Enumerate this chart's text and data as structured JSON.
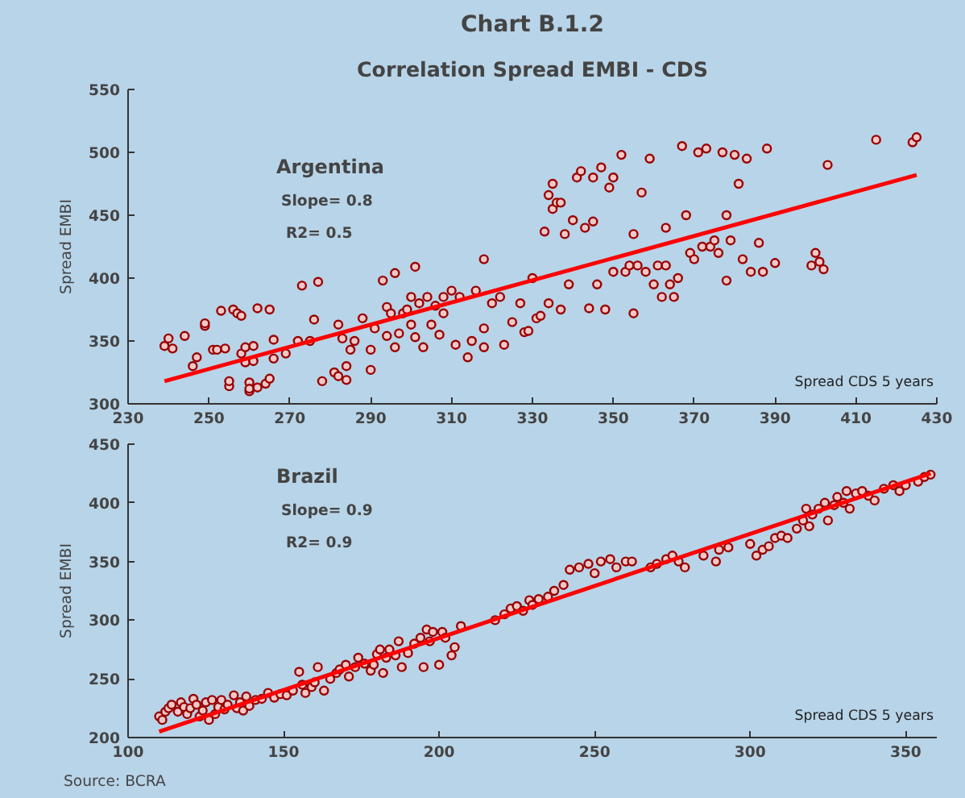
{
  "chart_data": [
    {
      "type": "scatter",
      "title": "Chart B.1.2",
      "subtitle": "Correlation Spread EMBI - CDS",
      "xlabel": "Spread CDS 5 years",
      "ylabel": "Spread EMBI",
      "annotations": [
        "Argentina",
        "Slope= 0.8",
        "R2= 0.5"
      ],
      "xlim": [
        230,
        430
      ],
      "xticks": [
        230,
        250,
        270,
        290,
        310,
        330,
        350,
        370,
        390,
        410,
        430
      ],
      "ylim": [
        300,
        550
      ],
      "yticks": [
        300,
        350,
        400,
        450,
        500,
        550
      ],
      "grid": false,
      "marker": "circle",
      "series": [
        {
          "color": "#990000",
          "x": [
            240,
            239,
            241,
            244,
            246,
            247,
            249,
            249,
            251,
            252,
            253,
            254,
            255,
            255,
            256,
            257,
            258,
            258,
            259,
            259,
            260,
            260,
            260,
            261,
            261,
            262,
            262,
            264,
            265,
            265,
            266,
            266,
            269,
            272,
            273,
            275,
            276,
            277,
            278,
            281,
            282,
            282,
            283,
            284,
            284,
            285,
            286,
            288,
            290,
            290,
            291,
            293,
            294,
            294,
            295,
            296,
            296,
            297,
            298,
            299,
            300,
            300,
            301,
            301,
            302,
            303,
            304,
            305,
            306,
            307,
            308,
            308,
            310,
            311,
            312,
            314,
            315,
            316,
            318,
            318,
            318,
            320,
            322,
            323,
            325,
            327,
            328,
            329,
            330,
            331,
            332,
            333,
            334,
            334,
            335,
            335,
            336,
            337,
            337,
            338,
            339,
            340,
            341,
            342,
            343,
            344,
            345,
            345,
            346,
            347,
            348,
            349,
            350,
            350,
            352,
            353,
            354,
            355,
            355,
            356,
            357,
            358,
            359,
            360,
            361,
            362,
            363,
            363,
            364,
            365,
            366,
            367,
            368,
            369,
            370,
            371,
            372,
            373,
            374,
            375,
            376,
            377,
            378,
            378,
            379,
            380,
            381,
            382,
            383,
            384,
            386,
            388,
            387,
            390,
            399,
            400,
            401,
            402,
            403,
            415,
            424,
            425
          ],
          "values": [
            352,
            346,
            344,
            354,
            330,
            337,
            362,
            364,
            343,
            343,
            374,
            344,
            314,
            318,
            375,
            372,
            370,
            340,
            345,
            333,
            310,
            317,
            312,
            334,
            346,
            376,
            313,
            316,
            320,
            375,
            336,
            351,
            340,
            350,
            394,
            350,
            367,
            397,
            318,
            325,
            322,
            363,
            352,
            330,
            319,
            343,
            350,
            368,
            327,
            343,
            360,
            398,
            377,
            354,
            372,
            404,
            345,
            356,
            372,
            375,
            363,
            385,
            409,
            353,
            380,
            345,
            385,
            363,
            378,
            355,
            385,
            372,
            390,
            347,
            385,
            337,
            350,
            390,
            415,
            345,
            360,
            380,
            385,
            347,
            365,
            380,
            357,
            358,
            400,
            368,
            370,
            437,
            466,
            380,
            475,
            455,
            460,
            460,
            375,
            435,
            395,
            446,
            480,
            485,
            440,
            376,
            445,
            480,
            395,
            488,
            375,
            472,
            480,
            405,
            498,
            405,
            410,
            435,
            372,
            410,
            468,
            405,
            495,
            395,
            410,
            385,
            410,
            440,
            395,
            385,
            400,
            505,
            450,
            420,
            415,
            500,
            425,
            503,
            425,
            430,
            420,
            500,
            450,
            398,
            430,
            498,
            475,
            415,
            495,
            405,
            428,
            503,
            405,
            412,
            410,
            420,
            413,
            407,
            490,
            510,
            508,
            512
          ]
        },
        {
          "type": "line",
          "marker": "none",
          "color": "#ff0000",
          "x": [
            239,
            425
          ],
          "values": [
            318,
            482
          ]
        }
      ]
    },
    {
      "type": "scatter",
      "xlabel": "Spread CDS 5 years",
      "ylabel": "Spread EMBI",
      "annotations": [
        "Brazil",
        "Slope= 0.9",
        "R2= 0.9",
        "Source: BCRA"
      ],
      "xlim": [
        100,
        360
      ],
      "xticks": [
        100,
        150,
        200,
        250,
        300,
        350
      ],
      "ylim": [
        200,
        450
      ],
      "yticks": [
        200,
        250,
        300,
        350,
        400,
        450
      ],
      "grid": false,
      "marker": "circle",
      "series": [
        {
          "color": "#990000",
          "x": [
            110,
            111,
            112,
            113,
            114,
            116,
            117,
            118,
            119,
            120,
            121,
            122,
            123,
            124,
            125,
            126,
            127,
            128,
            129,
            130,
            131,
            132,
            134,
            135,
            136,
            137,
            138,
            139,
            141,
            143,
            145,
            147,
            149,
            151,
            153,
            155,
            156,
            157,
            159,
            160,
            161,
            163,
            165,
            167,
            168,
            170,
            171,
            173,
            174,
            176,
            178,
            179,
            180,
            181,
            182,
            183,
            184,
            186,
            187,
            188,
            190,
            192,
            194,
            195,
            196,
            197,
            198,
            200,
            201,
            202,
            204,
            205,
            207,
            218,
            221,
            223,
            225,
            227,
            229,
            230,
            232,
            235,
            237,
            240,
            242,
            245,
            248,
            250,
            252,
            255,
            257,
            260,
            262,
            268,
            270,
            273,
            275,
            277,
            279,
            285,
            289,
            290,
            293,
            300,
            302,
            304,
            306,
            308,
            310,
            312,
            315,
            317,
            318,
            319,
            320,
            322,
            324,
            325,
            327,
            328,
            330,
            331,
            332,
            334,
            336,
            338,
            340,
            343,
            346,
            348,
            350,
            354,
            356,
            358
          ],
          "values": [
            218,
            215,
            222,
            225,
            228,
            222,
            230,
            226,
            220,
            225,
            233,
            228,
            218,
            223,
            230,
            215,
            232,
            220,
            226,
            232,
            224,
            228,
            236,
            225,
            230,
            223,
            235,
            227,
            232,
            233,
            238,
            234,
            237,
            236,
            240,
            256,
            245,
            238,
            243,
            247,
            260,
            240,
            250,
            255,
            258,
            262,
            252,
            260,
            268,
            263,
            257,
            262,
            271,
            275,
            255,
            268,
            275,
            270,
            282,
            260,
            272,
            280,
            285,
            260,
            292,
            282,
            290,
            262,
            290,
            285,
            270,
            277,
            295,
            300,
            305,
            310,
            312,
            308,
            317,
            313,
            318,
            320,
            325,
            330,
            343,
            345,
            348,
            340,
            350,
            352,
            345,
            350,
            350,
            345,
            348,
            352,
            355,
            350,
            345,
            355,
            350,
            360,
            362,
            365,
            355,
            360,
            363,
            370,
            372,
            370,
            378,
            385,
            395,
            380,
            390,
            395,
            400,
            385,
            398,
            405,
            400,
            410,
            395,
            408,
            410,
            406,
            402,
            412,
            415,
            410,
            415,
            418,
            422,
            424
          ]
        },
        {
          "type": "line",
          "marker": "none",
          "color": "#ff0000",
          "x": [
            110,
            358
          ],
          "values": [
            205,
            425
          ]
        }
      ]
    }
  ]
}
